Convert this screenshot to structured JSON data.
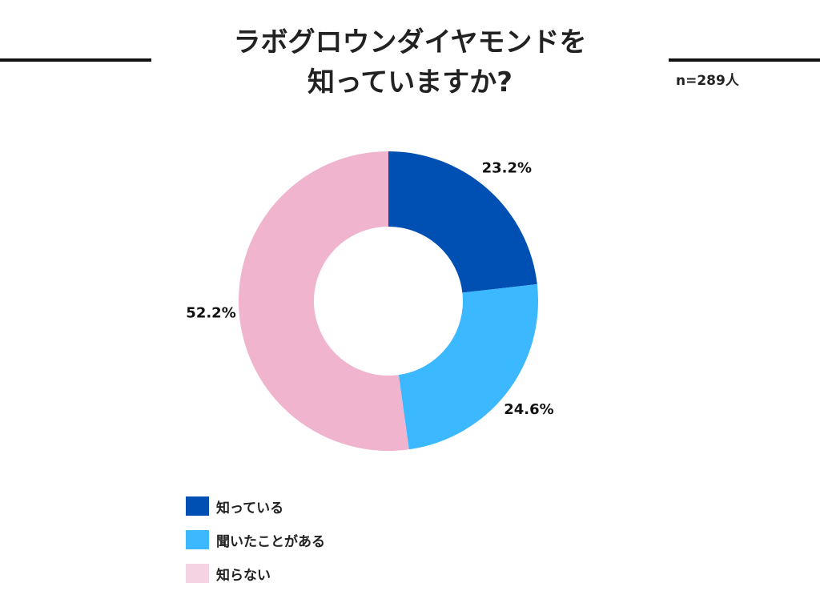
{
  "title_line1": "ラボグロウンダイヤモンドを",
  "title_line2": "知っていますか?",
  "sample_size": "n=289人",
  "chart_data": {
    "type": "pie",
    "donut": true,
    "title": "ラボグロウンダイヤモンドを知っていますか?",
    "categories": [
      "知っている",
      "聞いたことがある",
      "知らない"
    ],
    "values": [
      23.2,
      24.6,
      52.2
    ],
    "value_labels": [
      "23.2%",
      "24.6%",
      "52.2%"
    ],
    "colors": [
      "#0050B3",
      "#3BB8FF",
      "#F0B4CE"
    ],
    "legend_colors": [
      "#0050B3",
      "#3BB8FF",
      "#F5D3E2"
    ],
    "legend_placement": "bottom-left",
    "start_angle": "12 o'clock, clockwise"
  }
}
